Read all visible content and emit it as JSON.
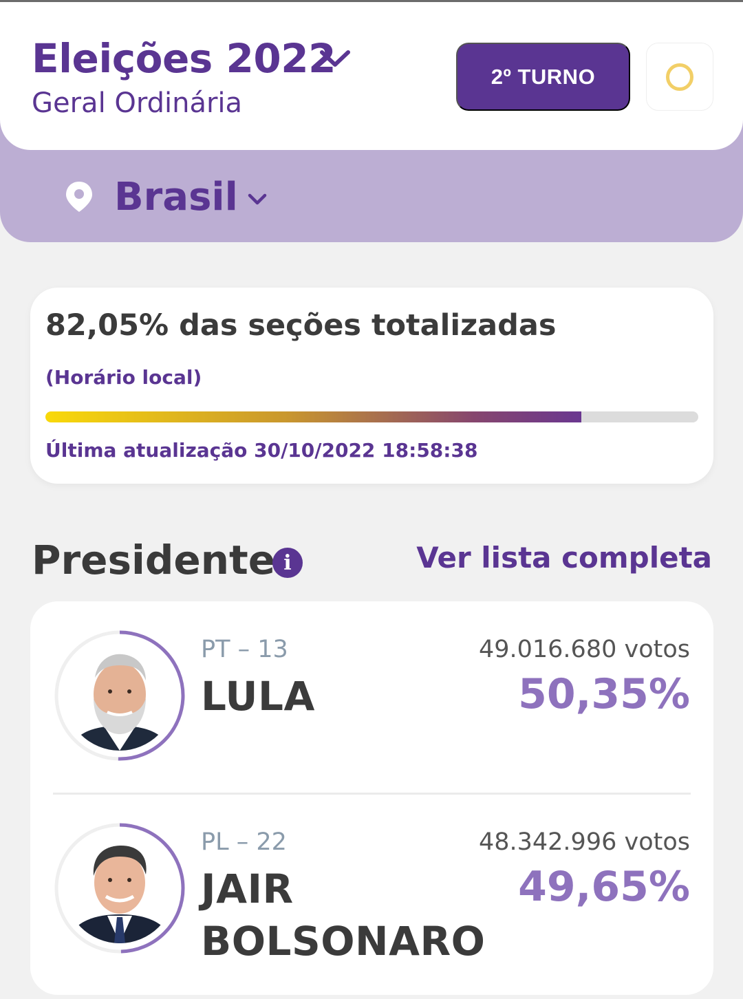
{
  "header": {
    "title": "Eleições 2022",
    "subtitle": "Geral Ordinária",
    "round_button": "2º TURNO",
    "icons": {
      "title_dropdown": "chevron-down-icon",
      "theme": "circle-icon"
    }
  },
  "location": {
    "label": "Brasil",
    "icons": {
      "pin": "location-pin-icon",
      "dropdown": "chevron-down-icon"
    }
  },
  "progress": {
    "percent_text": "82,05% das seções totalizadas",
    "timezone_note": "(Horário local)",
    "fraction": 0.8205,
    "last_update": "Última atualização 30/10/2022 18:58:38"
  },
  "section": {
    "title": "Presidente",
    "info_icon": "i",
    "full_list_link": "Ver lista completa"
  },
  "candidates": [
    {
      "party": "PT – 13",
      "name": "LULA",
      "votes": "49.016.680 votos",
      "percent": "50,35%",
      "share": 0.5035
    },
    {
      "party": "PL – 22",
      "name_line1": "JAIR",
      "name_line2": "BOLSONARO",
      "votes": "48.342.996 votos",
      "percent": "49,65%",
      "share": 0.4965
    }
  ],
  "colors": {
    "primary": "#5a3592",
    "accent": "#8e72bd",
    "band": "#bcaed3",
    "theme_ring": "#f2cf67"
  }
}
